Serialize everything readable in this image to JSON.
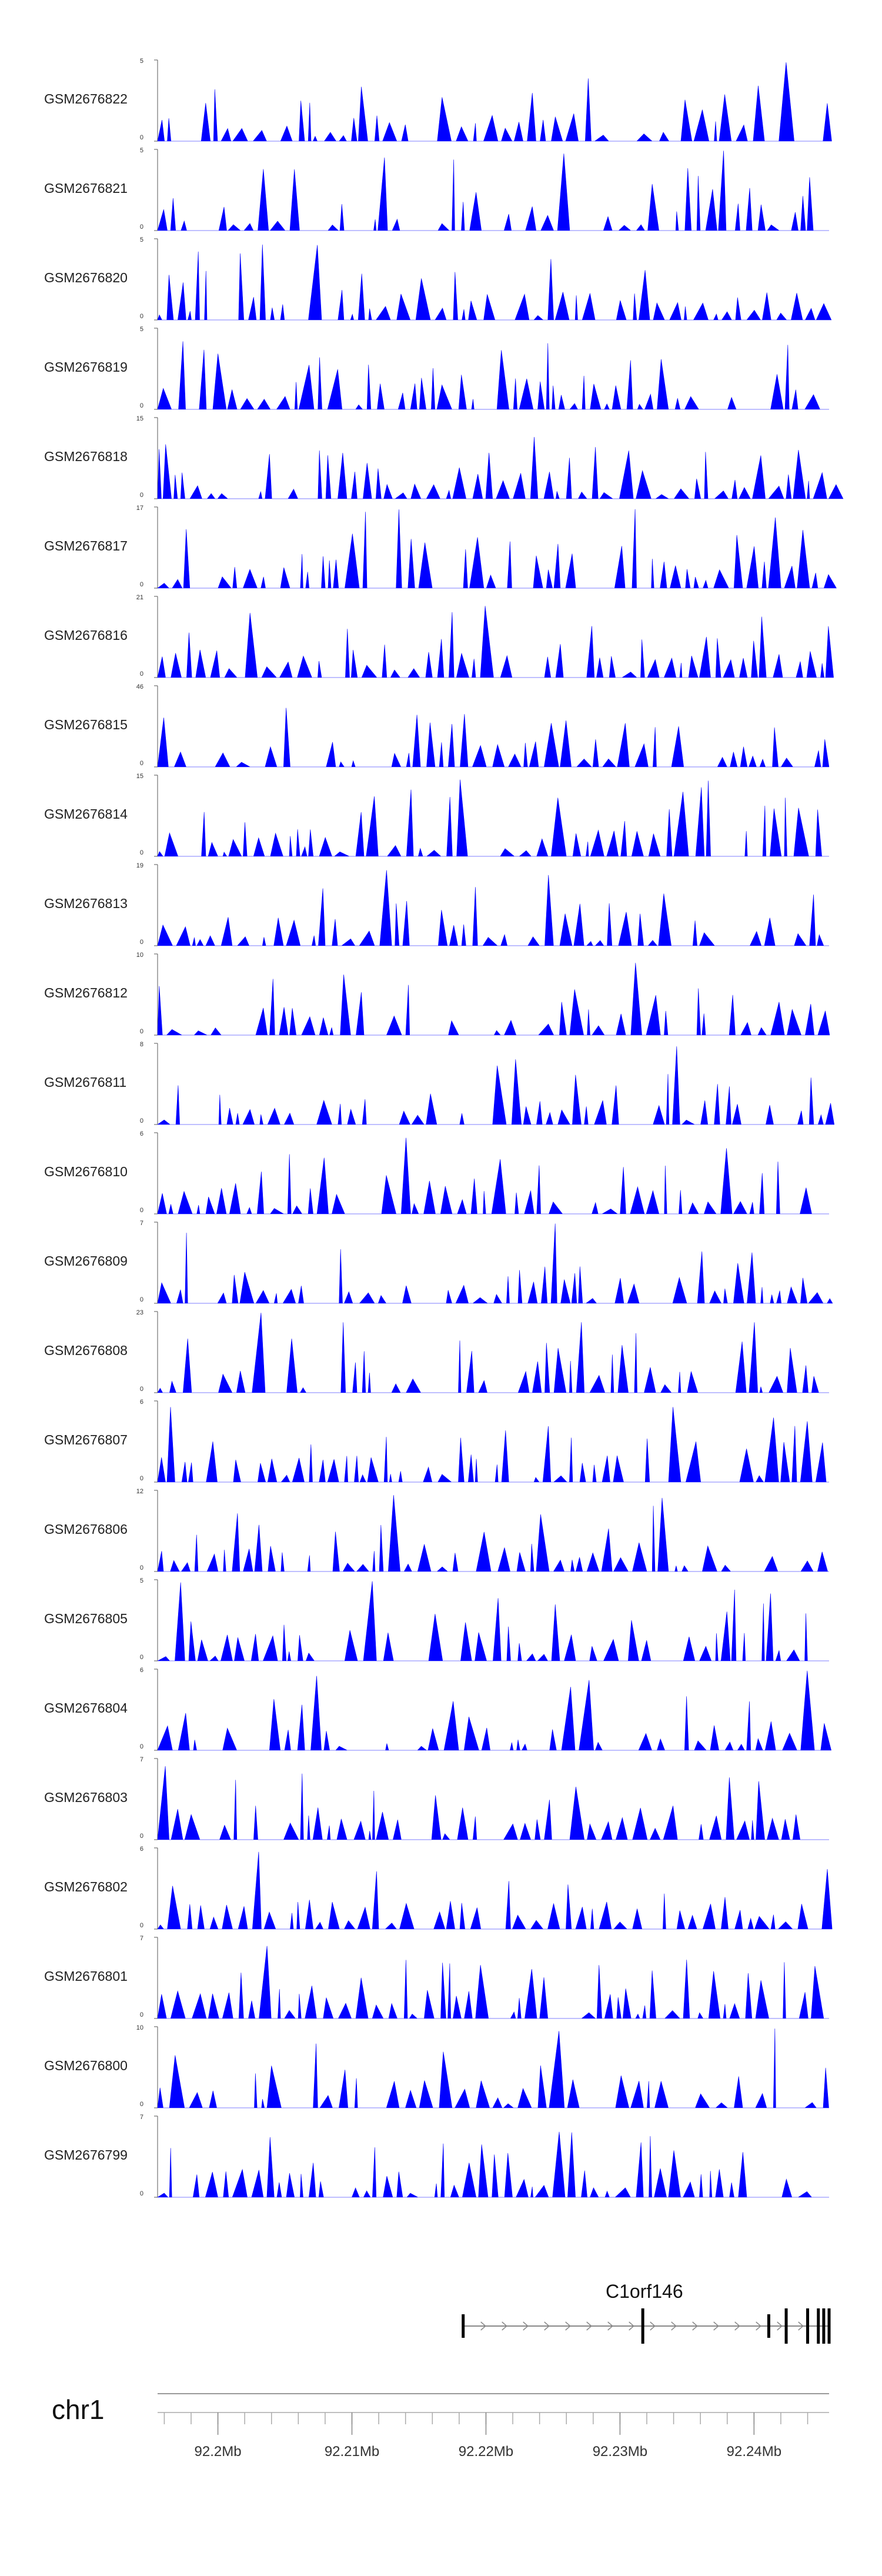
{
  "chart_data": {
    "type": "area",
    "title": "",
    "xlabel": "",
    "ylabel": "",
    "series_color": "#0000ff",
    "region": {
      "chromosome": "chr1",
      "start_mb": 92.1955,
      "end_mb": 92.2456
    },
    "tracks": [
      {
        "name": "GSM2676822",
        "ymax": 5,
        "ylabel_top": "5",
        "ylabel_bottom": "0",
        "seed": 11
      },
      {
        "name": "GSM2676821",
        "ymax": 5,
        "ylabel_top": "5",
        "ylabel_bottom": "0",
        "seed": 23
      },
      {
        "name": "GSM2676820",
        "ymax": 5,
        "ylabel_top": "5",
        "ylabel_bottom": "0",
        "seed": 37
      },
      {
        "name": "GSM2676819",
        "ymax": 5,
        "ylabel_top": "5",
        "ylabel_bottom": "0",
        "seed": 41
      },
      {
        "name": "GSM2676818",
        "ymax": 15,
        "ylabel_top": "15",
        "ylabel_bottom": "0",
        "seed": 53
      },
      {
        "name": "GSM2676817",
        "ymax": 17,
        "ylabel_top": "17",
        "ylabel_bottom": "0",
        "seed": 67
      },
      {
        "name": "GSM2676816",
        "ymax": 21,
        "ylabel_top": "21",
        "ylabel_bottom": "0",
        "seed": 71
      },
      {
        "name": "GSM2676815",
        "ymax": 46,
        "ylabel_top": "46",
        "ylabel_bottom": "0",
        "seed": 83
      },
      {
        "name": "GSM2676814",
        "ymax": 15,
        "ylabel_top": "15",
        "ylabel_bottom": "0",
        "seed": 97
      },
      {
        "name": "GSM2676813",
        "ymax": 19,
        "ylabel_top": "19",
        "ylabel_bottom": "0",
        "seed": 101
      },
      {
        "name": "GSM2676812",
        "ymax": 10,
        "ylabel_top": "10",
        "ylabel_bottom": "0",
        "seed": 113
      },
      {
        "name": "GSM2676811",
        "ymax": 8,
        "ylabel_top": "8",
        "ylabel_bottom": "0",
        "seed": 127
      },
      {
        "name": "GSM2676810",
        "ymax": 6,
        "ylabel_top": "6",
        "ylabel_bottom": "0",
        "seed": 131
      },
      {
        "name": "GSM2676809",
        "ymax": 7,
        "ylabel_top": "7",
        "ylabel_bottom": "0",
        "seed": 149
      },
      {
        "name": "GSM2676808",
        "ymax": 23,
        "ylabel_top": "23",
        "ylabel_bottom": "0",
        "seed": 151
      },
      {
        "name": "GSM2676807",
        "ymax": 6,
        "ylabel_top": "6",
        "ylabel_bottom": "0",
        "seed": 163
      },
      {
        "name": "GSM2676806",
        "ymax": 12,
        "ylabel_top": "12",
        "ylabel_bottom": "0",
        "seed": 173
      },
      {
        "name": "GSM2676805",
        "ymax": 5,
        "ylabel_top": "5",
        "ylabel_bottom": "0",
        "seed": 181
      },
      {
        "name": "GSM2676804",
        "ymax": 6,
        "ylabel_top": "6",
        "ylabel_bottom": "0",
        "seed": 193
      },
      {
        "name": "GSM2676803",
        "ymax": 7,
        "ylabel_top": "7",
        "ylabel_bottom": "0",
        "seed": 197
      },
      {
        "name": "GSM2676802",
        "ymax": 6,
        "ylabel_top": "6",
        "ylabel_bottom": "0",
        "seed": 211
      },
      {
        "name": "GSM2676801",
        "ymax": 7,
        "ylabel_top": "7",
        "ylabel_bottom": "0",
        "seed": 223
      },
      {
        "name": "GSM2676800",
        "ymax": 10,
        "ylabel_top": "10",
        "ylabel_bottom": "0",
        "seed": 227
      },
      {
        "name": "GSM2676799",
        "ymax": 7,
        "ylabel_top": "7",
        "ylabel_bottom": "0",
        "seed": 229
      }
    ],
    "gene": {
      "name": "C1orf146",
      "start_mb": 92.2183,
      "end_mb": 92.2456,
      "strand": "+",
      "exons_mb": [
        92.2183,
        92.2317,
        92.2411,
        92.2424,
        92.244,
        92.2448,
        92.2452,
        92.2456
      ]
    },
    "axis": {
      "ticks_mb": [
        92.2,
        92.21,
        92.22,
        92.23,
        92.24
      ],
      "tick_labels": [
        "92.2Mb",
        "92.21Mb",
        "92.22Mb",
        "92.23Mb",
        "92.24Mb"
      ],
      "minor_step_mb": 0.002
    }
  }
}
